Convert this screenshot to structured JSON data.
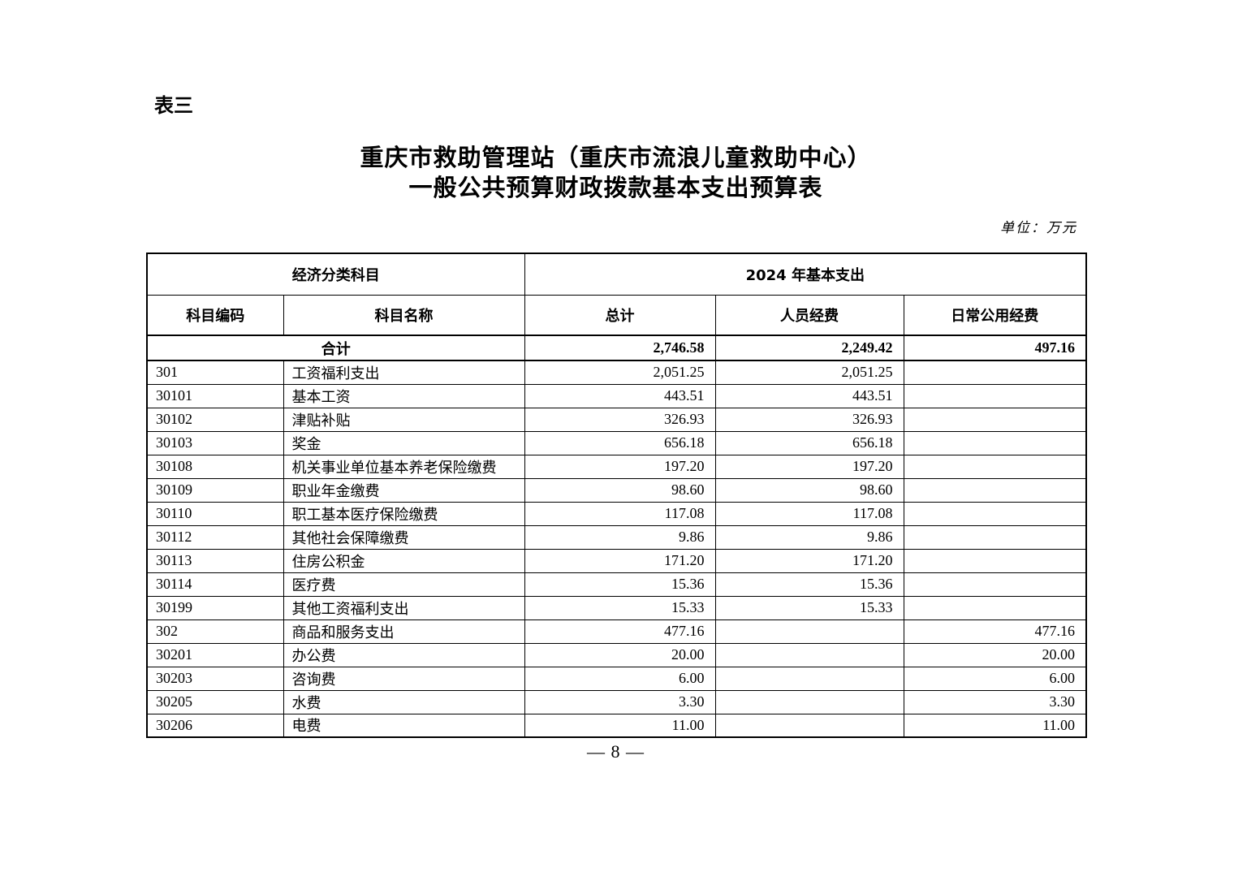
{
  "page": {
    "table_label": "表三",
    "title_line1": "重庆市救助管理站（重庆市流浪儿童救助中心）",
    "title_line2": "一般公共预算财政拨款基本支出预算表",
    "unit_label": "单位：万元",
    "page_number": "— 8 —"
  },
  "table": {
    "header": {
      "group_economic": "经济分类科目",
      "group_2024": "2024 年基本支出",
      "columns": [
        "科目编码",
        "科目名称",
        "总计",
        "人员经费",
        "日常公用经费"
      ]
    },
    "total_row": {
      "label": "合计",
      "total": "2,746.58",
      "personnel": "2,249.42",
      "public": "497.16"
    },
    "rows": [
      {
        "code": "301",
        "name": "工资福利支出",
        "total": "2,051.25",
        "personnel": "2,051.25",
        "public": ""
      },
      {
        "code": "30101",
        "name": "基本工资",
        "total": "443.51",
        "personnel": "443.51",
        "public": ""
      },
      {
        "code": "30102",
        "name": "津贴补贴",
        "total": "326.93",
        "personnel": "326.93",
        "public": ""
      },
      {
        "code": "30103",
        "name": "奖金",
        "total": "656.18",
        "personnel": "656.18",
        "public": ""
      },
      {
        "code": "30108",
        "name": "机关事业单位基本养老保险缴费",
        "total": "197.20",
        "personnel": "197.20",
        "public": ""
      },
      {
        "code": "30109",
        "name": "职业年金缴费",
        "total": "98.60",
        "personnel": "98.60",
        "public": ""
      },
      {
        "code": "30110",
        "name": "职工基本医疗保险缴费",
        "total": "117.08",
        "personnel": "117.08",
        "public": ""
      },
      {
        "code": "30112",
        "name": "其他社会保障缴费",
        "total": "9.86",
        "personnel": "9.86",
        "public": ""
      },
      {
        "code": "30113",
        "name": "住房公积金",
        "total": "171.20",
        "personnel": "171.20",
        "public": ""
      },
      {
        "code": "30114",
        "name": "医疗费",
        "total": "15.36",
        "personnel": "15.36",
        "public": ""
      },
      {
        "code": "30199",
        "name": "其他工资福利支出",
        "total": "15.33",
        "personnel": "15.33",
        "public": ""
      },
      {
        "code": "302",
        "name": "商品和服务支出",
        "total": "477.16",
        "personnel": "",
        "public": "477.16"
      },
      {
        "code": "30201",
        "name": "办公费",
        "total": "20.00",
        "personnel": "",
        "public": "20.00"
      },
      {
        "code": "30203",
        "name": "咨询费",
        "total": "6.00",
        "personnel": "",
        "public": "6.00"
      },
      {
        "code": "30205",
        "name": "水费",
        "total": "3.30",
        "personnel": "",
        "public": "3.30"
      },
      {
        "code": "30206",
        "name": "电费",
        "total": "11.00",
        "personnel": "",
        "public": "11.00"
      }
    ]
  }
}
